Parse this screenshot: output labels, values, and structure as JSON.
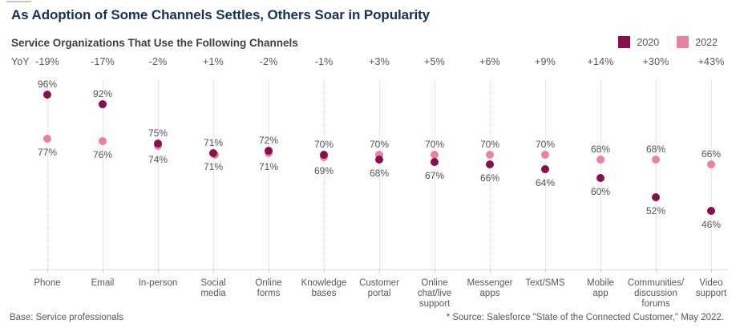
{
  "footer": {
    "base": "Base: Service professionals",
    "source": "* Source: Salesforce \"State of the Connected Customer,\" May 2022."
  },
  "chart_data": {
    "type": "scatter",
    "title": "As Adoption of Some Channels Settles, Others Soar in Popularity",
    "subtitle": "Service Organizations That Use the Following Channels",
    "yoy_label": "YoY",
    "yoy": [
      "-19%",
      "-17%",
      "-2%",
      "+1%",
      "-2%",
      "-1%",
      "+3%",
      "+5%",
      "+6%",
      "+9%",
      "+14%",
      "+30%",
      "+43%"
    ],
    "categories": [
      "Phone",
      "Email",
      "In-person",
      "Social\nmedia",
      "Online\nforms",
      "Knowledge\nbases",
      "Customer\nportal",
      "Online\nchat/live\nsupport",
      "Messenger\napps",
      "Text/SMS",
      "Mobile\napp",
      "Communities/\ndiscussion\nforums",
      "Video\nsupport"
    ],
    "series": [
      {
        "name": "2020",
        "color": "#8a0e4c",
        "values": [
          96,
          92,
          75,
          71,
          72,
          70,
          68,
          67,
          66,
          64,
          60,
          52,
          46
        ]
      },
      {
        "name": "2022",
        "color": "#e8849f",
        "values": [
          77,
          76,
          74,
          71,
          71,
          69,
          70,
          70,
          70,
          70,
          68,
          68,
          66
        ]
      }
    ],
    "value_suffix": "%",
    "ylim": [
      40,
      100
    ],
    "grid": "dotted-vertical-column-lines",
    "legend_position": "top-right",
    "xlabel": "",
    "ylabel": ""
  }
}
